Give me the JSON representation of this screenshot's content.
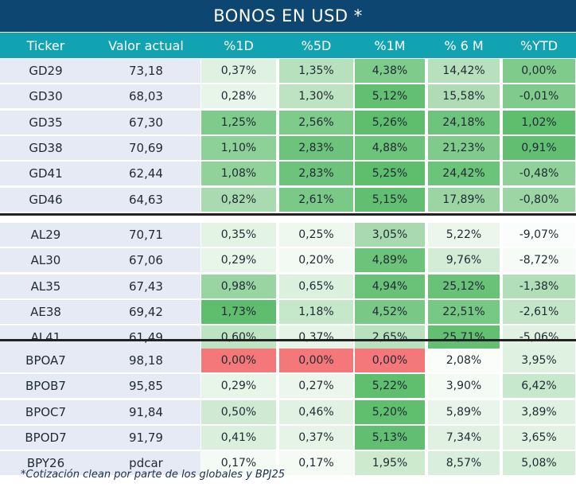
{
  "title": "BONOS EN USD *",
  "headers": [
    "Ticker",
    "Valor actual",
    "%1D",
    "%5D",
    "%1M",
    "% 6 M",
    "%YTD"
  ],
  "groups": [
    [
      {
        "ticker": "GD29",
        "valor": "73,18",
        "cells": [
          {
            "t": "0,37%",
            "c": "#dff1e0"
          },
          {
            "t": "1,35%",
            "c": "#b7e1bd"
          },
          {
            "t": "4,38%",
            "c": "#7fcb8b"
          },
          {
            "t": "14,42%",
            "c": "#b7e1bd"
          },
          {
            "t": "0,00%",
            "c": "#7fcb8b"
          }
        ]
      },
      {
        "ticker": "GD30",
        "valor": "68,03",
        "cells": [
          {
            "t": "0,28%",
            "c": "#e8f5e9"
          },
          {
            "t": "1,30%",
            "c": "#bde3c2"
          },
          {
            "t": "5,12%",
            "c": "#63bf72"
          },
          {
            "t": "15,58%",
            "c": "#afdcb5"
          },
          {
            "t": "-0,01%",
            "c": "#7fcb8b"
          }
        ]
      },
      {
        "ticker": "GD35",
        "valor": "67,30",
        "cells": [
          {
            "t": "1,25%",
            "c": "#7fcb8b"
          },
          {
            "t": "2,56%",
            "c": "#7fcb8b"
          },
          {
            "t": "5,26%",
            "c": "#5fbd6e"
          },
          {
            "t": "24,18%",
            "c": "#6ec47c"
          },
          {
            "t": "1,02%",
            "c": "#5fbd6e"
          }
        ]
      },
      {
        "ticker": "GD38",
        "valor": "70,69",
        "cells": [
          {
            "t": "1,10%",
            "c": "#8dd198"
          },
          {
            "t": "2,83%",
            "c": "#6dc37b"
          },
          {
            "t": "4,88%",
            "c": "#6cc37a"
          },
          {
            "t": "21,23%",
            "c": "#80cb8c"
          },
          {
            "t": "0,91%",
            "c": "#62be71"
          }
        ]
      },
      {
        "ticker": "GD41",
        "valor": "62,44",
        "cells": [
          {
            "t": "1,08%",
            "c": "#90d29a"
          },
          {
            "t": "2,83%",
            "c": "#6dc37b"
          },
          {
            "t": "5,25%",
            "c": "#5fbd6e"
          },
          {
            "t": "24,42%",
            "c": "#6cc37a"
          },
          {
            "t": "-0,48%",
            "c": "#8fd199"
          }
        ]
      },
      {
        "ticker": "GD46",
        "valor": "64,63",
        "cells": [
          {
            "t": "0,82%",
            "c": "#a9dab0"
          },
          {
            "t": "2,61%",
            "c": "#7bc987"
          },
          {
            "t": "5,15%",
            "c": "#62be71"
          },
          {
            "t": "17,89%",
            "c": "#9ad5a3"
          },
          {
            "t": "-0,80%",
            "c": "#9bd6a4"
          }
        ]
      }
    ],
    [
      {
        "ticker": "AL29",
        "valor": "70,71",
        "cells": [
          {
            "t": "0,35%",
            "c": "#e3f3e4"
          },
          {
            "t": "0,25%",
            "c": "#eef8ef"
          },
          {
            "t": "3,05%",
            "c": "#a8d9af"
          },
          {
            "t": "5,22%",
            "c": "#ecf6ed"
          },
          {
            "t": "-9,07%",
            "c": "#fbfdfc"
          }
        ]
      },
      {
        "ticker": "AL30",
        "valor": "67,06",
        "cells": [
          {
            "t": "0,29%",
            "c": "#e8f5e9"
          },
          {
            "t": "0,20%",
            "c": "#f3faf4"
          },
          {
            "t": "4,89%",
            "c": "#6cc37a"
          },
          {
            "t": "9,76%",
            "c": "#d2ecd5"
          },
          {
            "t": "-8,72%",
            "c": "#f6fbf7"
          }
        ]
      },
      {
        "ticker": "AL35",
        "valor": "67,43",
        "cells": [
          {
            "t": "0,98%",
            "c": "#99d5a2"
          },
          {
            "t": "0,65%",
            "c": "#dcf0de"
          },
          {
            "t": "4,94%",
            "c": "#69c278"
          },
          {
            "t": "25,12%",
            "c": "#69c278"
          },
          {
            "t": "-1,38%",
            "c": "#b2dfb8"
          }
        ]
      },
      {
        "ticker": "AE38",
        "valor": "69,42",
        "cells": [
          {
            "t": "1,73%",
            "c": "#5fbd6e"
          },
          {
            "t": "1,18%",
            "c": "#c5e7ca"
          },
          {
            "t": "4,52%",
            "c": "#79c886"
          },
          {
            "t": "22,51%",
            "c": "#78c885"
          },
          {
            "t": "-2,61%",
            "c": "#c3e6c8"
          }
        ]
      },
      {
        "ticker": "AL41",
        "valor": "61,49",
        "cells": [
          {
            "t": "0,60%",
            "c": "#bfe4c4"
          },
          {
            "t": "0,37%",
            "c": "#e6f4e7"
          },
          {
            "t": "2,65%",
            "c": "#b8e1be"
          },
          {
            "t": "25,71%",
            "c": "#63bf72"
          },
          {
            "t": "-5,06%",
            "c": "#e1f2e3"
          }
        ]
      }
    ],
    [
      {
        "ticker": "BPOA7",
        "valor": "98,18",
        "cells": [
          {
            "t": "0,00%",
            "c": "#f4777a"
          },
          {
            "t": "0,00%",
            "c": "#f4777a"
          },
          {
            "t": "0,00%",
            "c": "#f4777a"
          },
          {
            "t": "2,08%",
            "c": "#fafdfa"
          },
          {
            "t": "3,95%",
            "c": "#dff1e1"
          }
        ]
      },
      {
        "ticker": "BPOB7",
        "valor": "95,85",
        "cells": [
          {
            "t": "0,29%",
            "c": "#e8f5e9"
          },
          {
            "t": "0,27%",
            "c": "#ecf6ed"
          },
          {
            "t": "5,22%",
            "c": "#60be6f"
          },
          {
            "t": "3,90%",
            "c": "#f4faf4"
          },
          {
            "t": "6,42%",
            "c": "#c7e8cc"
          }
        ]
      },
      {
        "ticker": "BPOC7",
        "valor": "91,84",
        "cells": [
          {
            "t": "0,50%",
            "c": "#cfe9d3"
          },
          {
            "t": "0,46%",
            "c": "#e1f2e3"
          },
          {
            "t": "5,20%",
            "c": "#60be6f"
          },
          {
            "t": "5,89%",
            "c": "#e9f5ea"
          },
          {
            "t": "3,89%",
            "c": "#dff1e1"
          }
        ]
      },
      {
        "ticker": "BPOD7",
        "valor": "91,79",
        "cells": [
          {
            "t": "0,41%",
            "c": "#daefdc"
          },
          {
            "t": "0,37%",
            "c": "#e6f4e7"
          },
          {
            "t": "5,13%",
            "c": "#62be71"
          },
          {
            "t": "7,34%",
            "c": "#e0f1e2"
          },
          {
            "t": "3,65%",
            "c": "#e1f2e3"
          }
        ]
      },
      {
        "ticker": "BPY26",
        "valor": "pdcar",
        "cells": [
          {
            "t": "0,17%",
            "c": "#f4faf4"
          },
          {
            "t": "0,17%",
            "c": "#f4faf4"
          },
          {
            "t": "1,95%",
            "c": "#cdeacf"
          },
          {
            "t": "8,57%",
            "c": "#d9eedc"
          },
          {
            "t": "5,08%",
            "c": "#d4edd7"
          }
        ]
      }
    ]
  ],
  "footnote": "*Cotización clean por parte de los globales y BPJ25",
  "colors": {
    "title_bg": "#0d4670",
    "header_bg": "#12a3b3",
    "label_bg": "#e5eaf4"
  }
}
